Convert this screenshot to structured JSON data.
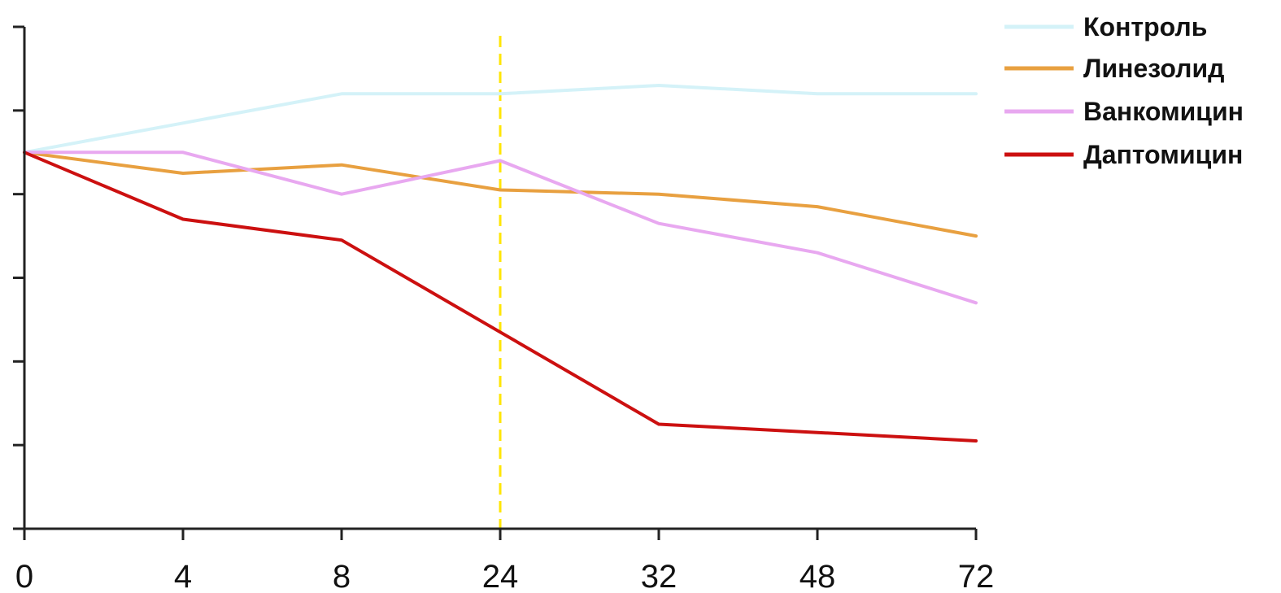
{
  "chart_data": {
    "type": "line",
    "categories": [
      "0",
      "4",
      "8",
      "24",
      "32",
      "48",
      "72"
    ],
    "ylim": [
      0,
      12
    ],
    "y_ticks": [
      0,
      2,
      4,
      6,
      8,
      10,
      12
    ],
    "y_tick_labels_shown": false,
    "grid": false,
    "legend_position": "top-right",
    "reference_line": {
      "category": "24",
      "style": "dashed",
      "color": "#ffe600"
    },
    "series": [
      {
        "name": "Контроль",
        "color": "#d4f2f8",
        "values": [
          9.0,
          9.7,
          10.4,
          10.4,
          10.6,
          10.4,
          10.4
        ]
      },
      {
        "name": "Линезолид",
        "color": "#e8a040",
        "values": [
          9.0,
          8.5,
          8.7,
          8.1,
          8.0,
          7.7,
          7.0
        ]
      },
      {
        "name": "Ванкомицин",
        "color": "#e8a8f0",
        "values": [
          9.0,
          9.0,
          8.0,
          8.8,
          7.3,
          6.6,
          5.4
        ]
      },
      {
        "name": "Даптомицин",
        "color": "#cc1010",
        "values": [
          9.0,
          7.4,
          6.9,
          4.7,
          2.5,
          2.3,
          2.1
        ]
      }
    ]
  }
}
